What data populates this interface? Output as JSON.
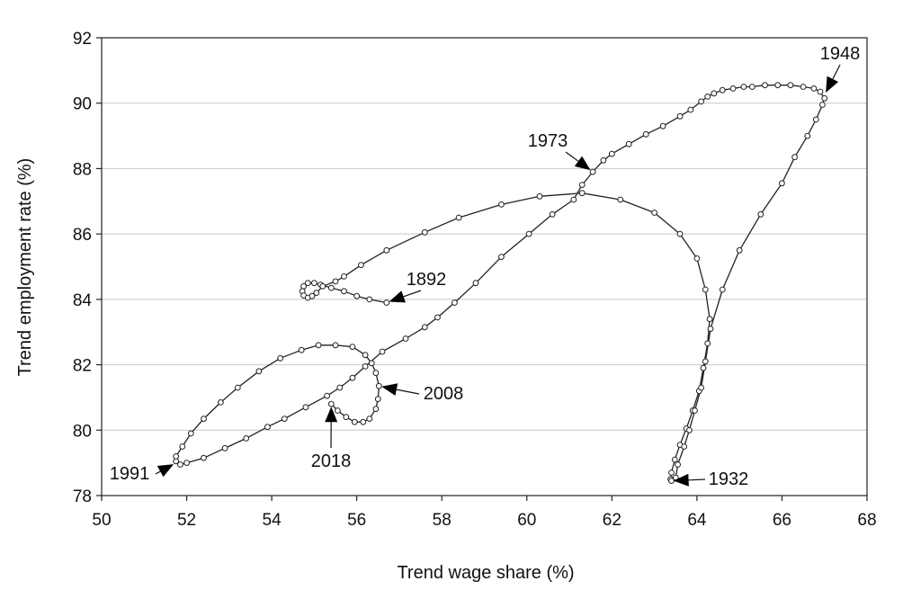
{
  "chart_data": {
    "type": "line",
    "title": "",
    "xlabel": "Trend wage share (%)",
    "ylabel": "Trend employment rate (%)",
    "xlim": [
      50,
      68
    ],
    "ylim": [
      78,
      92
    ],
    "xticks": [
      50,
      52,
      54,
      56,
      58,
      60,
      62,
      64,
      66,
      68
    ],
    "yticks": [
      78,
      80,
      82,
      84,
      86,
      88,
      90,
      92
    ],
    "grid": "horizontal",
    "marker": "open-circle",
    "line_color": "#222222",
    "series": [
      {
        "values": [
          [
            56.7,
            83.9
          ],
          [
            56.3,
            84.0
          ],
          [
            56.0,
            84.1
          ],
          [
            55.7,
            84.25
          ],
          [
            55.4,
            84.35
          ],
          [
            55.15,
            84.45
          ],
          [
            55.0,
            84.5
          ],
          [
            54.85,
            84.5
          ],
          [
            54.75,
            84.4
          ],
          [
            54.72,
            84.25
          ],
          [
            54.75,
            84.12
          ],
          [
            54.85,
            84.05
          ],
          [
            54.95,
            84.1
          ],
          [
            55.05,
            84.2
          ],
          [
            55.2,
            84.4
          ],
          [
            55.5,
            84.55
          ],
          [
            55.7,
            84.7
          ],
          [
            56.1,
            85.05
          ],
          [
            56.7,
            85.5
          ],
          [
            57.6,
            86.05
          ],
          [
            58.4,
            86.5
          ],
          [
            59.4,
            86.9
          ],
          [
            60.3,
            87.15
          ],
          [
            61.3,
            87.25
          ],
          [
            62.2,
            87.05
          ],
          [
            63.0,
            86.65
          ],
          [
            63.6,
            86.0
          ],
          [
            64.0,
            85.25
          ],
          [
            64.2,
            84.3
          ],
          [
            64.3,
            83.4
          ],
          [
            64.25,
            82.65
          ],
          [
            64.15,
            81.9
          ],
          [
            64.05,
            81.2
          ],
          [
            63.9,
            80.6
          ],
          [
            63.75,
            80.05
          ],
          [
            63.6,
            79.55
          ],
          [
            63.48,
            79.1
          ],
          [
            63.4,
            78.7
          ],
          [
            63.38,
            78.5
          ],
          [
            63.4,
            78.45
          ],
          [
            63.5,
            78.55
          ],
          [
            63.55,
            78.95
          ],
          [
            63.7,
            79.5
          ],
          [
            63.82,
            80.0
          ],
          [
            63.95,
            80.6
          ],
          [
            64.1,
            81.3
          ],
          [
            64.2,
            82.1
          ],
          [
            64.32,
            83.1
          ],
          [
            64.6,
            84.3
          ],
          [
            65.0,
            85.5
          ],
          [
            65.5,
            86.6
          ],
          [
            66.0,
            87.55
          ],
          [
            66.3,
            88.35
          ],
          [
            66.6,
            89.0
          ],
          [
            66.8,
            89.5
          ],
          [
            66.95,
            89.95
          ],
          [
            67.0,
            90.15
          ],
          [
            66.9,
            90.35
          ],
          [
            66.75,
            90.45
          ],
          [
            66.5,
            90.5
          ],
          [
            66.2,
            90.55
          ],
          [
            65.9,
            90.55
          ],
          [
            65.6,
            90.55
          ],
          [
            65.3,
            90.5
          ],
          [
            65.1,
            90.5
          ],
          [
            64.85,
            90.45
          ],
          [
            64.6,
            90.4
          ],
          [
            64.4,
            90.3
          ],
          [
            64.25,
            90.2
          ],
          [
            64.1,
            90.05
          ],
          [
            63.85,
            89.8
          ],
          [
            63.6,
            89.6
          ],
          [
            63.2,
            89.3
          ],
          [
            62.8,
            89.05
          ],
          [
            62.4,
            88.75
          ],
          [
            62.0,
            88.45
          ],
          [
            61.8,
            88.25
          ],
          [
            61.55,
            87.9
          ],
          [
            61.3,
            87.5
          ],
          [
            61.1,
            87.05
          ],
          [
            60.6,
            86.6
          ],
          [
            60.05,
            86.0
          ],
          [
            59.4,
            85.3
          ],
          [
            58.8,
            84.5
          ],
          [
            58.3,
            83.9
          ],
          [
            57.9,
            83.45
          ],
          [
            57.6,
            83.15
          ],
          [
            57.15,
            82.8
          ],
          [
            56.6,
            82.4
          ],
          [
            56.2,
            81.95
          ],
          [
            55.9,
            81.6
          ],
          [
            55.6,
            81.3
          ],
          [
            55.3,
            81.05
          ],
          [
            54.8,
            80.7
          ],
          [
            54.3,
            80.35
          ],
          [
            53.9,
            80.1
          ],
          [
            53.4,
            79.75
          ],
          [
            52.9,
            79.45
          ],
          [
            52.4,
            79.15
          ],
          [
            52.0,
            79.0
          ],
          [
            51.85,
            78.95
          ],
          [
            51.75,
            79.05
          ],
          [
            51.75,
            79.2
          ],
          [
            51.9,
            79.5
          ],
          [
            52.1,
            79.9
          ],
          [
            52.4,
            80.35
          ],
          [
            52.8,
            80.85
          ],
          [
            53.2,
            81.3
          ],
          [
            53.7,
            81.8
          ],
          [
            54.2,
            82.2
          ],
          [
            54.7,
            82.45
          ],
          [
            55.1,
            82.6
          ],
          [
            55.5,
            82.6
          ],
          [
            55.9,
            82.55
          ],
          [
            56.2,
            82.3
          ],
          [
            56.35,
            82.05
          ],
          [
            56.45,
            81.75
          ],
          [
            56.52,
            81.35
          ],
          [
            56.5,
            80.95
          ],
          [
            56.45,
            80.65
          ],
          [
            56.3,
            80.35
          ],
          [
            56.15,
            80.25
          ],
          [
            55.95,
            80.25
          ],
          [
            55.75,
            80.4
          ],
          [
            55.55,
            80.6
          ],
          [
            55.4,
            80.8
          ]
        ]
      }
    ],
    "annotations": [
      {
        "label": "1892",
        "point": [
          56.7,
          83.9
        ]
      },
      {
        "label": "1932",
        "point": [
          63.38,
          78.45
        ]
      },
      {
        "label": "1948",
        "point": [
          67.0,
          90.25
        ]
      },
      {
        "label": "1973",
        "point": [
          61.55,
          87.9
        ]
      },
      {
        "label": "1991",
        "point": [
          51.75,
          79.0
        ]
      },
      {
        "label": "2008",
        "point": [
          56.52,
          81.35
        ]
      },
      {
        "label": "2018",
        "point": [
          55.4,
          80.8
        ]
      }
    ]
  }
}
